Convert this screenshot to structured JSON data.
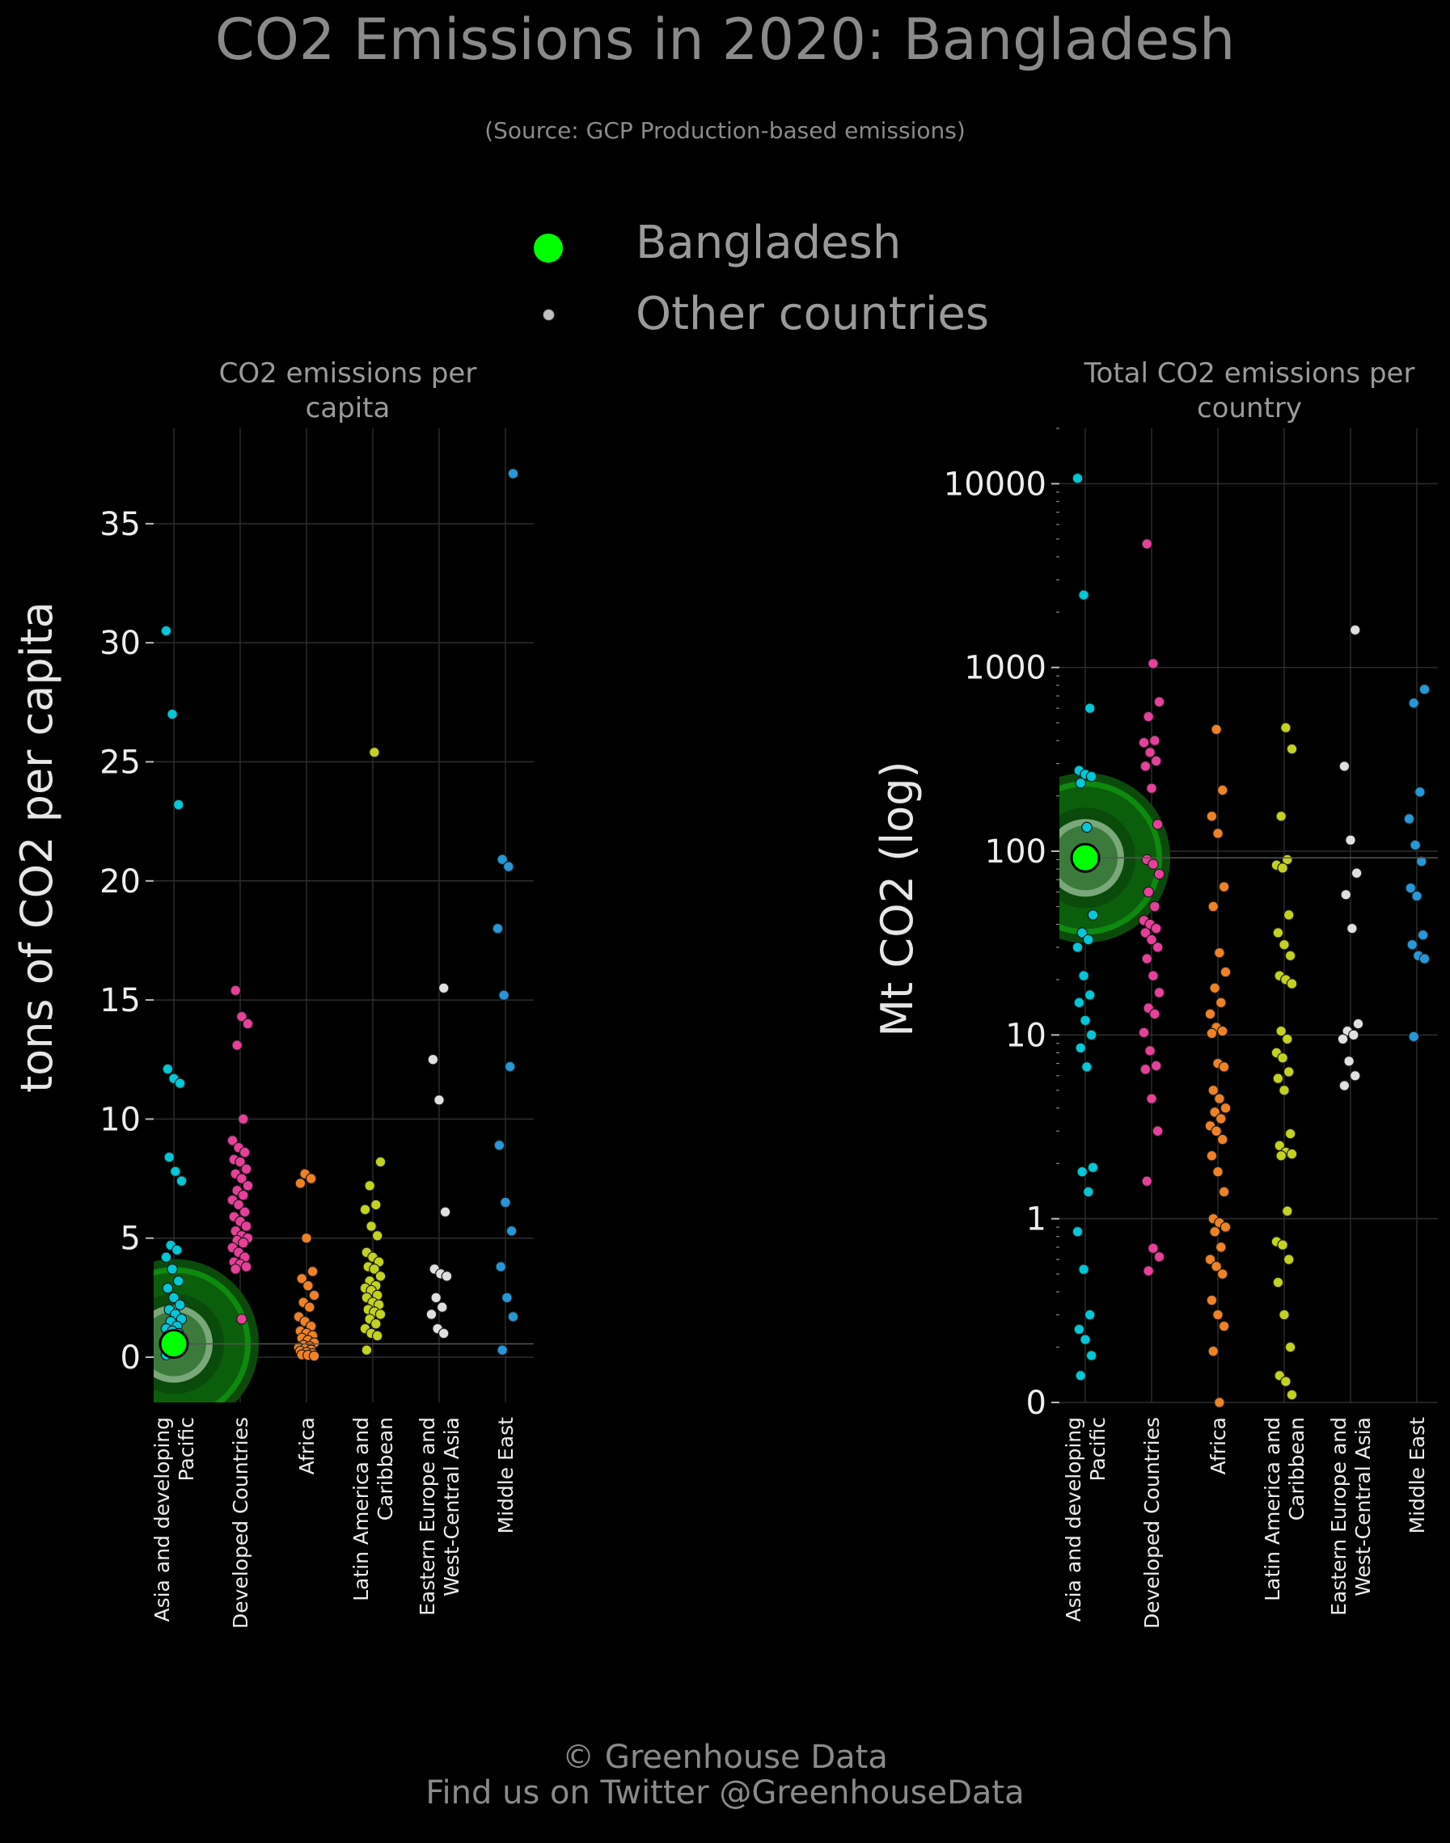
{
  "header": {
    "title": "CO2 Emissions in 2020: Bangladesh",
    "subtitle": "(Source: GCP Production-based emissions)"
  },
  "legend": {
    "items": [
      {
        "label": "Bangladesh",
        "color": "#00ff00"
      },
      {
        "label": "Other countries",
        "color": "#bfbfbf"
      }
    ]
  },
  "footer": {
    "line1": "© Greenhouse Data",
    "line2": "Find us on Twitter @GreenhouseData"
  },
  "colors": {
    "Asia and developing Pacific": "#00c8d8",
    "Developed Countries": "#e8409a",
    "Africa": "#f08224",
    "Latin America and Caribbean": "#c2d21e",
    "Eastern Europe and West-Central Asia": "#e0e0e0",
    "Middle East": "#2498d8",
    "highlight": "#00ff00"
  },
  "chart_data": [
    {
      "type": "scatter",
      "title": "CO2 emissions per capita",
      "ylabel": "tons of CO2 per capita",
      "xlabel": "",
      "scale": "linear",
      "ylim": [
        -1.9,
        39
      ],
      "yticks": [
        0,
        5,
        10,
        15,
        20,
        25,
        30,
        35
      ],
      "grid": true,
      "categories": [
        "Asia and developing\nPacific",
        "Developed Countries",
        "Africa",
        "Latin America and\nCaribbean",
        "Eastern Europe and\nWest-Central Asia",
        "Middle East"
      ],
      "highlight": {
        "name": "Bangladesh",
        "category": 0,
        "value": 0.56
      },
      "series": [
        {
          "values": [
            30.5,
            27.0,
            23.2,
            12.1,
            11.7,
            11.5,
            8.4,
            7.8,
            7.4,
            4.7,
            4.5,
            4.2,
            3.7,
            3.2,
            2.9,
            2.5,
            2.2,
            2.0,
            1.8,
            1.6,
            1.5,
            1.3,
            1.2,
            1.1,
            1.0,
            0.9,
            0.8,
            0.7,
            0.6,
            0.5,
            0.4,
            0.3,
            0.2,
            0.1
          ]
        },
        {
          "values": [
            15.4,
            14.3,
            14.0,
            13.1,
            10.0,
            9.1,
            8.8,
            8.6,
            8.3,
            8.2,
            7.9,
            7.7,
            7.5,
            7.2,
            7.0,
            6.8,
            6.6,
            6.4,
            6.1,
            5.9,
            5.7,
            5.5,
            5.3,
            5.1,
            5.0,
            4.9,
            4.8,
            4.6,
            4.4,
            4.2,
            4.0,
            3.9,
            3.8,
            3.7,
            1.6
          ]
        },
        {
          "values": [
            7.7,
            7.5,
            7.3,
            5.0,
            3.6,
            3.3,
            3.0,
            2.6,
            2.3,
            2.1,
            1.7,
            1.5,
            1.3,
            1.1,
            1.0,
            0.9,
            0.8,
            0.7,
            0.6,
            0.5,
            0.45,
            0.4,
            0.35,
            0.3,
            0.25,
            0.2,
            0.15,
            0.1,
            0.08,
            0.05
          ]
        },
        {
          "values": [
            25.4,
            8.2,
            7.2,
            6.4,
            6.2,
            5.5,
            5.1,
            4.4,
            4.2,
            4.0,
            3.8,
            3.7,
            3.4,
            3.2,
            3.0,
            2.9,
            2.8,
            2.6,
            2.5,
            2.3,
            2.2,
            2.0,
            1.9,
            1.8,
            1.6,
            1.4,
            1.2,
            1.0,
            0.9,
            0.3
          ]
        },
        {
          "values": [
            15.5,
            12.5,
            10.8,
            6.1,
            3.7,
            3.5,
            3.4,
            2.5,
            2.1,
            1.8,
            1.2,
            1.0
          ]
        },
        {
          "values": [
            37.1,
            20.9,
            20.6,
            18.0,
            15.2,
            12.2,
            8.9,
            6.5,
            5.3,
            3.8,
            2.5,
            1.7,
            0.3
          ]
        }
      ]
    },
    {
      "type": "scatter",
      "title": "Total CO2 emissions per country",
      "ylabel": "Mt CO2 (log)",
      "xlabel": "",
      "scale": "log",
      "ylim": [
        0,
        20000
      ],
      "yticks": [
        0,
        1,
        10,
        100,
        1000,
        10000
      ],
      "grid": true,
      "categories": [
        "Asia and developing\nPacific",
        "Developed Countries",
        "Africa",
        "Latin America and\nCaribbean",
        "Eastern Europe and\nWest-Central Asia",
        "Middle East"
      ],
      "highlight": {
        "name": "Bangladesh",
        "category": 0,
        "value": 92
      },
      "series": [
        {
          "values": [
            10700,
            2480,
            600,
            275,
            262,
            255,
            235,
            135,
            45,
            36,
            33,
            30,
            21,
            16.5,
            15,
            12,
            10,
            8.5,
            6.7,
            1.9,
            1.8,
            1.4,
            0.85,
            0.53,
            0.3,
            0.25,
            0.22,
            0.18,
            0.14
          ]
        },
        {
          "values": [
            4700,
            1050,
            650,
            540,
            400,
            390,
            345,
            310,
            290,
            220,
            140,
            90,
            85,
            75,
            60,
            50,
            42,
            40,
            38,
            36,
            33,
            30,
            26,
            21,
            17,
            14,
            13,
            10.3,
            8.2,
            6.8,
            6.5,
            4.5,
            3.0,
            1.6,
            0.69,
            0.62,
            0.52
          ]
        },
        {
          "values": [
            460,
            215,
            155,
            125,
            64,
            50,
            28,
            22,
            18,
            15,
            13,
            11,
            10.5,
            10.2,
            7,
            6.7,
            5,
            4.5,
            4.0,
            3.8,
            3.5,
            3.2,
            3.0,
            2.7,
            2.2,
            1.8,
            1.4,
            1.0,
            0.95,
            0.9,
            0.85,
            0.7,
            0.6,
            0.55,
            0.5,
            0.36,
            0.3,
            0.26,
            0.19,
            0.08
          ]
        },
        {
          "values": [
            470,
            360,
            155,
            90,
            84,
            81,
            45,
            36,
            31,
            27,
            21,
            20,
            19,
            10.5,
            9.5,
            8,
            7.5,
            6.3,
            5.8,
            5.0,
            2.9,
            2.5,
            2.3,
            2.25,
            2.2,
            1.1,
            0.75,
            0.72,
            0.6,
            0.45,
            0.3,
            0.2,
            0.14,
            0.13,
            0.11
          ]
        },
        {
          "values": [
            1600,
            290,
            115,
            76,
            58,
            38,
            11.5,
            10.5,
            10,
            9.5,
            7.2,
            6,
            5.3
          ]
        },
        {
          "values": [
            760,
            640,
            210,
            150,
            108,
            88,
            63,
            57,
            35,
            31,
            27,
            26,
            9.8
          ]
        }
      ]
    }
  ]
}
